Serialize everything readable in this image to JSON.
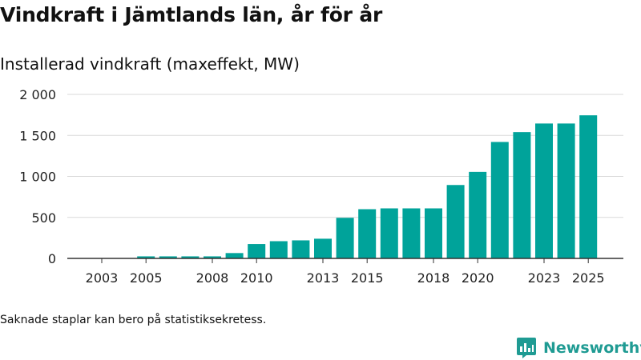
{
  "title": "Vindkraft i Jämtlands län, år för år",
  "footnote": "Saknade staplar kan bero på statistiksekretess.",
  "brand": {
    "name": "Newsworthy",
    "icon": "newsworthy-logo-icon"
  },
  "colors": {
    "bar": "#00a39a",
    "grid": "#d9d9d9",
    "axis": "#333333",
    "brand": "#1f9b93"
  },
  "chart_data": {
    "type": "bar",
    "title": "Installerad vindkraft (maxeffekt, MW)",
    "xlabel": "",
    "ylabel": "",
    "ylim": [
      0,
      2000
    ],
    "yticks": [
      0,
      500,
      1000,
      1500,
      2000
    ],
    "ytick_labels": [
      "0",
      "500",
      "1 000",
      "1 500",
      "2 000"
    ],
    "categories": [
      "2003",
      "2004",
      "2005",
      "2006",
      "2007",
      "2008",
      "2009",
      "2010",
      "2011",
      "2012",
      "2013",
      "2014",
      "2015",
      "2016",
      "2017",
      "2018",
      "2019",
      "2020",
      "2021",
      "2022",
      "2023",
      "2024",
      "2025"
    ],
    "xtick_labels": [
      "2003",
      "2005",
      "2008",
      "2010",
      "2013",
      "2015",
      "2018",
      "2020",
      "2023",
      "2025"
    ],
    "values": [
      1,
      2,
      25,
      25,
      25,
      25,
      65,
      175,
      210,
      220,
      240,
      495,
      600,
      610,
      610,
      610,
      895,
      1055,
      1420,
      1540,
      1645,
      1645,
      1745
    ],
    "grid": true,
    "legend": "none"
  }
}
